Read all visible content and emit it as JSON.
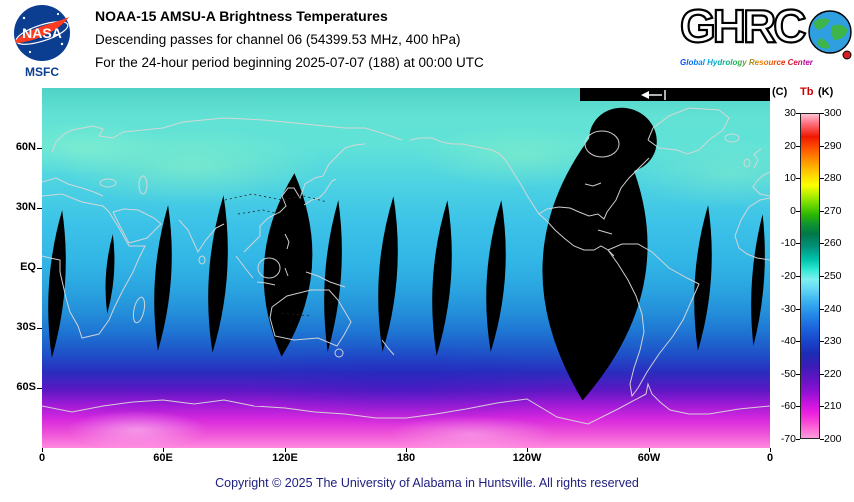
{
  "header": {
    "nasa": {
      "wordmark": "NASA",
      "center": "MSFC"
    },
    "title": "NOAA-15 AMSU-A Brightness Temperatures",
    "subtitle_line1": "Descending passes for channel 06 (54399.53 MHz, 400 hPa)",
    "subtitle_line2": "For the 24-hour period beginning 2025-07-07 (188) at 00:00 UTC",
    "ghrc": {
      "wordmark": "GHRC",
      "tagline": "Global Hydrology Resource Center"
    }
  },
  "map": {
    "lat_ticks": [
      "60N",
      "30N",
      "EQ",
      "30S",
      "60S"
    ],
    "lon_ticks": [
      "0",
      "60E",
      "120E",
      "180",
      "120W",
      "60W",
      "0"
    ]
  },
  "colorbar": {
    "header_c": "(C)",
    "header_tb": "Tb",
    "header_k": "(K)",
    "ticks_c": [
      "30",
      "20",
      "10",
      "0",
      "-10",
      "-20",
      "-30",
      "-40",
      "-50",
      "-60",
      "-70"
    ],
    "ticks_k": [
      "300",
      "290",
      "280",
      "270",
      "260",
      "250",
      "240",
      "230",
      "220",
      "210",
      "200"
    ]
  },
  "footer": {
    "copyright": "Copyright © 2025 The University of Alabama in Huntsville. All rights reserved"
  },
  "chart_data": {
    "type": "heatmap",
    "title": "NOAA-15 AMSU-A Brightness Temperatures",
    "subtitle": "Descending passes for channel 06 (54399.53 MHz, 400 hPa), 24-hour period beginning 2025-07-07 (188) at 00:00 UTC",
    "projection": "equirectangular world map, longitude 0E eastward to 360/0 left-to-right, latitude 90N top to 90S bottom",
    "x_tick_labels": [
      "0",
      "60E",
      "120E",
      "180",
      "120W",
      "60W",
      "0"
    ],
    "y_tick_labels": [
      "60N",
      "30N",
      "EQ",
      "30S",
      "60S"
    ],
    "colorbar": {
      "label": "Tb (K) with (C) scale",
      "ticks_K": [
        300,
        290,
        280,
        270,
        260,
        250,
        240,
        230,
        220,
        210,
        200
      ],
      "ticks_C": [
        30,
        20,
        10,
        0,
        -10,
        -20,
        -30,
        -40,
        -50,
        -60,
        -70
      ],
      "colors_top_to_bottom": [
        "pink",
        "red",
        "orange",
        "yellow",
        "green",
        "dark green",
        "teal",
        "cyan",
        "light blue",
        "blue",
        "dark blue",
        "purple",
        "magenta",
        "light pink"
      ]
    },
    "values_summary": {
      "tropics_and_northern_hemisphere_K": [
        245,
        258
      ],
      "southern_midlatitudes_40S_60S_K": [
        220,
        240
      ],
      "antarctic_band_K": [
        200,
        215
      ],
      "missing_data": "black lens-shaped inter-swath gaps roughly every 27 degrees longitude between 30N and 45S, one large black data void over South America and the west Atlantic, and a black patch over Greenland and the top-right polar strip"
    },
    "grid": false,
    "legend_position": "right vertical colorbar"
  }
}
